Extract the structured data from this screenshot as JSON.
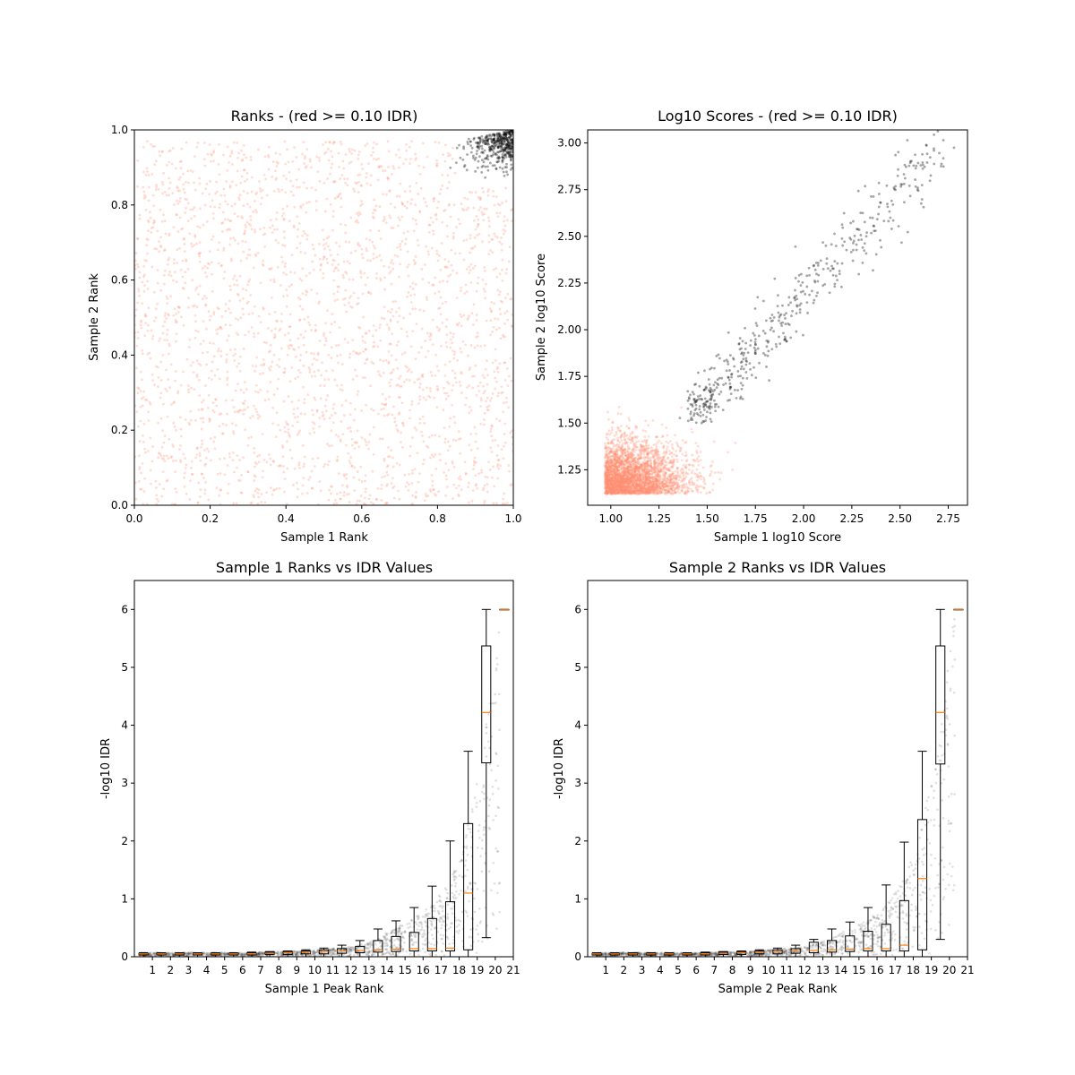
{
  "chart_data": [
    {
      "type": "scatter",
      "title": "Ranks - (red >= 0.10 IDR)",
      "xlabel": "Sample 1 Rank",
      "ylabel": "Sample 2 Rank",
      "xlim": [
        0,
        1
      ],
      "ylim": [
        0,
        1
      ],
      "xticks": [
        "0.0",
        "0.2",
        "0.4",
        "0.6",
        "0.8",
        "1.0"
      ],
      "yticks": [
        "0.0",
        "0.2",
        "0.4",
        "0.6",
        "0.8",
        "1.0"
      ],
      "grid": false,
      "colors": {
        "above_threshold": "#ff9070",
        "below_threshold": "#000000"
      },
      "series": [
        {
          "points": 2600,
          "region": {
            "x": [
              0,
              1
            ],
            "y": [
              0,
              0.97
            ]
          }
        },
        {
          "points": 400,
          "region": {
            "x": [
              0.82,
              1
            ],
            "y": [
              0.83,
              1
            ]
          }
        }
      ]
    },
    {
      "type": "scatter",
      "title": "Log10 Scores - (red >= 0.10 IDR)",
      "xlabel": "Sample 1 log10 Score",
      "ylabel": "Sample 2 log10 Score",
      "xlim": [
        0.88,
        2.85
      ],
      "ylim": [
        1.06,
        3.07
      ],
      "xticks": [
        "1.00",
        "1.25",
        "1.50",
        "1.75",
        "2.00",
        "2.25",
        "2.50",
        "2.75"
      ],
      "yticks": [
        "1.25",
        "1.50",
        "1.75",
        "2.00",
        "2.25",
        "2.50",
        "2.75",
        "3.00"
      ],
      "grid": false,
      "colors": {
        "above_threshold": "#ff9070",
        "below_threshold": "#000000"
      },
      "series": [
        {
          "points": 3000,
          "region": {
            "x": [
              0.96,
              1.7
            ],
            "y": [
              1.12,
              1.6
            ]
          }
        },
        {
          "points": 500,
          "trend": {
            "x": [
              1.42,
              2.75
            ],
            "y": [
              1.5,
              2.97
            ]
          }
        }
      ]
    },
    {
      "type": "box",
      "title": "Sample 1 Ranks vs IDR Values",
      "xlabel": "Sample 1 Peak Rank",
      "ylabel": "-log10 IDR",
      "xlim": [
        0,
        21
      ],
      "ylim": [
        0,
        6.5
      ],
      "xticks": [
        "1",
        "2",
        "3",
        "4",
        "5",
        "6",
        "7",
        "8",
        "9",
        "10",
        "11",
        "12",
        "13",
        "14",
        "15",
        "16",
        "17",
        "18",
        "19",
        "20",
        "21"
      ],
      "yticks": [
        "0",
        "1",
        "2",
        "3",
        "4",
        "5",
        "6"
      ],
      "median_color": "#ff7f0e",
      "boxes": [
        {
          "x": 1,
          "q1": 0.03,
          "med": 0.05,
          "q3": 0.06,
          "wlo": 0.0,
          "whi": 0.07
        },
        {
          "x": 2,
          "q1": 0.03,
          "med": 0.05,
          "q3": 0.06,
          "wlo": 0.0,
          "whi": 0.07
        },
        {
          "x": 3,
          "q1": 0.03,
          "med": 0.05,
          "q3": 0.06,
          "wlo": 0.0,
          "whi": 0.07
        },
        {
          "x": 4,
          "q1": 0.03,
          "med": 0.05,
          "q3": 0.06,
          "wlo": 0.0,
          "whi": 0.07
        },
        {
          "x": 5,
          "q1": 0.03,
          "med": 0.05,
          "q3": 0.06,
          "wlo": 0.0,
          "whi": 0.07
        },
        {
          "x": 6,
          "q1": 0.03,
          "med": 0.05,
          "q3": 0.06,
          "wlo": 0.0,
          "whi": 0.07
        },
        {
          "x": 7,
          "q1": 0.03,
          "med": 0.05,
          "q3": 0.07,
          "wlo": 0.0,
          "whi": 0.08
        },
        {
          "x": 8,
          "q1": 0.04,
          "med": 0.06,
          "q3": 0.08,
          "wlo": 0.0,
          "whi": 0.09
        },
        {
          "x": 9,
          "q1": 0.04,
          "med": 0.07,
          "q3": 0.09,
          "wlo": 0.0,
          "whi": 0.1
        },
        {
          "x": 10,
          "q1": 0.05,
          "med": 0.08,
          "q3": 0.1,
          "wlo": 0.0,
          "whi": 0.12
        },
        {
          "x": 11,
          "q1": 0.05,
          "med": 0.09,
          "q3": 0.12,
          "wlo": 0.0,
          "whi": 0.15
        },
        {
          "x": 12,
          "q1": 0.06,
          "med": 0.1,
          "q3": 0.14,
          "wlo": 0.0,
          "whi": 0.2
        },
        {
          "x": 13,
          "q1": 0.07,
          "med": 0.11,
          "q3": 0.18,
          "wlo": 0.0,
          "whi": 0.28
        },
        {
          "x": 14,
          "q1": 0.08,
          "med": 0.12,
          "q3": 0.28,
          "wlo": 0.0,
          "whi": 0.48
        },
        {
          "x": 15,
          "q1": 0.09,
          "med": 0.13,
          "q3": 0.35,
          "wlo": 0.0,
          "whi": 0.62
        },
        {
          "x": 16,
          "q1": 0.1,
          "med": 0.14,
          "q3": 0.42,
          "wlo": 0.0,
          "whi": 0.85
        },
        {
          "x": 17,
          "q1": 0.1,
          "med": 0.14,
          "q3": 0.66,
          "wlo": 0.0,
          "whi": 1.22
        },
        {
          "x": 18,
          "q1": 0.1,
          "med": 0.15,
          "q3": 0.95,
          "wlo": 0.0,
          "whi": 2.0
        },
        {
          "x": 19,
          "q1": 0.12,
          "med": 1.1,
          "q3": 2.3,
          "wlo": 0.0,
          "whi": 3.55
        },
        {
          "x": 20,
          "q1": 3.35,
          "med": 4.22,
          "q3": 5.37,
          "wlo": 0.33,
          "whi": 6.0
        },
        {
          "x": 21,
          "q1": 6.0,
          "med": 6.0,
          "q3": 6.0,
          "wlo": 6.0,
          "whi": 6.0
        }
      ]
    },
    {
      "type": "box",
      "title": "Sample 2 Ranks vs IDR Values",
      "xlabel": "Sample 2 Peak Rank",
      "ylabel": "-log10 IDR",
      "xlim": [
        0,
        21
      ],
      "ylim": [
        0,
        6.5
      ],
      "xticks": [
        "1",
        "2",
        "3",
        "4",
        "5",
        "6",
        "7",
        "8",
        "9",
        "10",
        "11",
        "12",
        "13",
        "14",
        "15",
        "16",
        "17",
        "18",
        "19",
        "20",
        "21"
      ],
      "yticks": [
        "0",
        "1",
        "2",
        "3",
        "4",
        "5",
        "6"
      ],
      "median_color": "#ff7f0e",
      "boxes": [
        {
          "x": 1,
          "q1": 0.03,
          "med": 0.05,
          "q3": 0.06,
          "wlo": 0.0,
          "whi": 0.07
        },
        {
          "x": 2,
          "q1": 0.03,
          "med": 0.05,
          "q3": 0.06,
          "wlo": 0.0,
          "whi": 0.07
        },
        {
          "x": 3,
          "q1": 0.03,
          "med": 0.05,
          "q3": 0.06,
          "wlo": 0.0,
          "whi": 0.07
        },
        {
          "x": 4,
          "q1": 0.03,
          "med": 0.05,
          "q3": 0.06,
          "wlo": 0.0,
          "whi": 0.07
        },
        {
          "x": 5,
          "q1": 0.03,
          "med": 0.05,
          "q3": 0.06,
          "wlo": 0.0,
          "whi": 0.07
        },
        {
          "x": 6,
          "q1": 0.03,
          "med": 0.05,
          "q3": 0.06,
          "wlo": 0.0,
          "whi": 0.07
        },
        {
          "x": 7,
          "q1": 0.03,
          "med": 0.05,
          "q3": 0.07,
          "wlo": 0.0,
          "whi": 0.08
        },
        {
          "x": 8,
          "q1": 0.04,
          "med": 0.06,
          "q3": 0.08,
          "wlo": 0.0,
          "whi": 0.09
        },
        {
          "x": 9,
          "q1": 0.04,
          "med": 0.07,
          "q3": 0.09,
          "wlo": 0.0,
          "whi": 0.1
        },
        {
          "x": 10,
          "q1": 0.05,
          "med": 0.08,
          "q3": 0.1,
          "wlo": 0.0,
          "whi": 0.12
        },
        {
          "x": 11,
          "q1": 0.05,
          "med": 0.09,
          "q3": 0.12,
          "wlo": 0.0,
          "whi": 0.15
        },
        {
          "x": 12,
          "q1": 0.06,
          "med": 0.1,
          "q3": 0.14,
          "wlo": 0.0,
          "whi": 0.2
        },
        {
          "x": 13,
          "q1": 0.07,
          "med": 0.11,
          "q3": 0.25,
          "wlo": 0.0,
          "whi": 0.3
        },
        {
          "x": 14,
          "q1": 0.08,
          "med": 0.12,
          "q3": 0.28,
          "wlo": 0.0,
          "whi": 0.48
        },
        {
          "x": 15,
          "q1": 0.09,
          "med": 0.13,
          "q3": 0.36,
          "wlo": 0.0,
          "whi": 0.6
        },
        {
          "x": 16,
          "q1": 0.1,
          "med": 0.14,
          "q3": 0.44,
          "wlo": 0.0,
          "whi": 0.85
        },
        {
          "x": 17,
          "q1": 0.1,
          "med": 0.14,
          "q3": 0.56,
          "wlo": 0.0,
          "whi": 1.24
        },
        {
          "x": 18,
          "q1": 0.1,
          "med": 0.2,
          "q3": 0.97,
          "wlo": 0.0,
          "whi": 1.98
        },
        {
          "x": 19,
          "q1": 0.12,
          "med": 1.35,
          "q3": 2.37,
          "wlo": 0.0,
          "whi": 3.55
        },
        {
          "x": 20,
          "q1": 3.33,
          "med": 4.22,
          "q3": 5.37,
          "wlo": 0.3,
          "whi": 6.0
        },
        {
          "x": 21,
          "q1": 6.0,
          "med": 6.0,
          "q3": 6.0,
          "wlo": 6.0,
          "whi": 6.0
        }
      ]
    }
  ]
}
